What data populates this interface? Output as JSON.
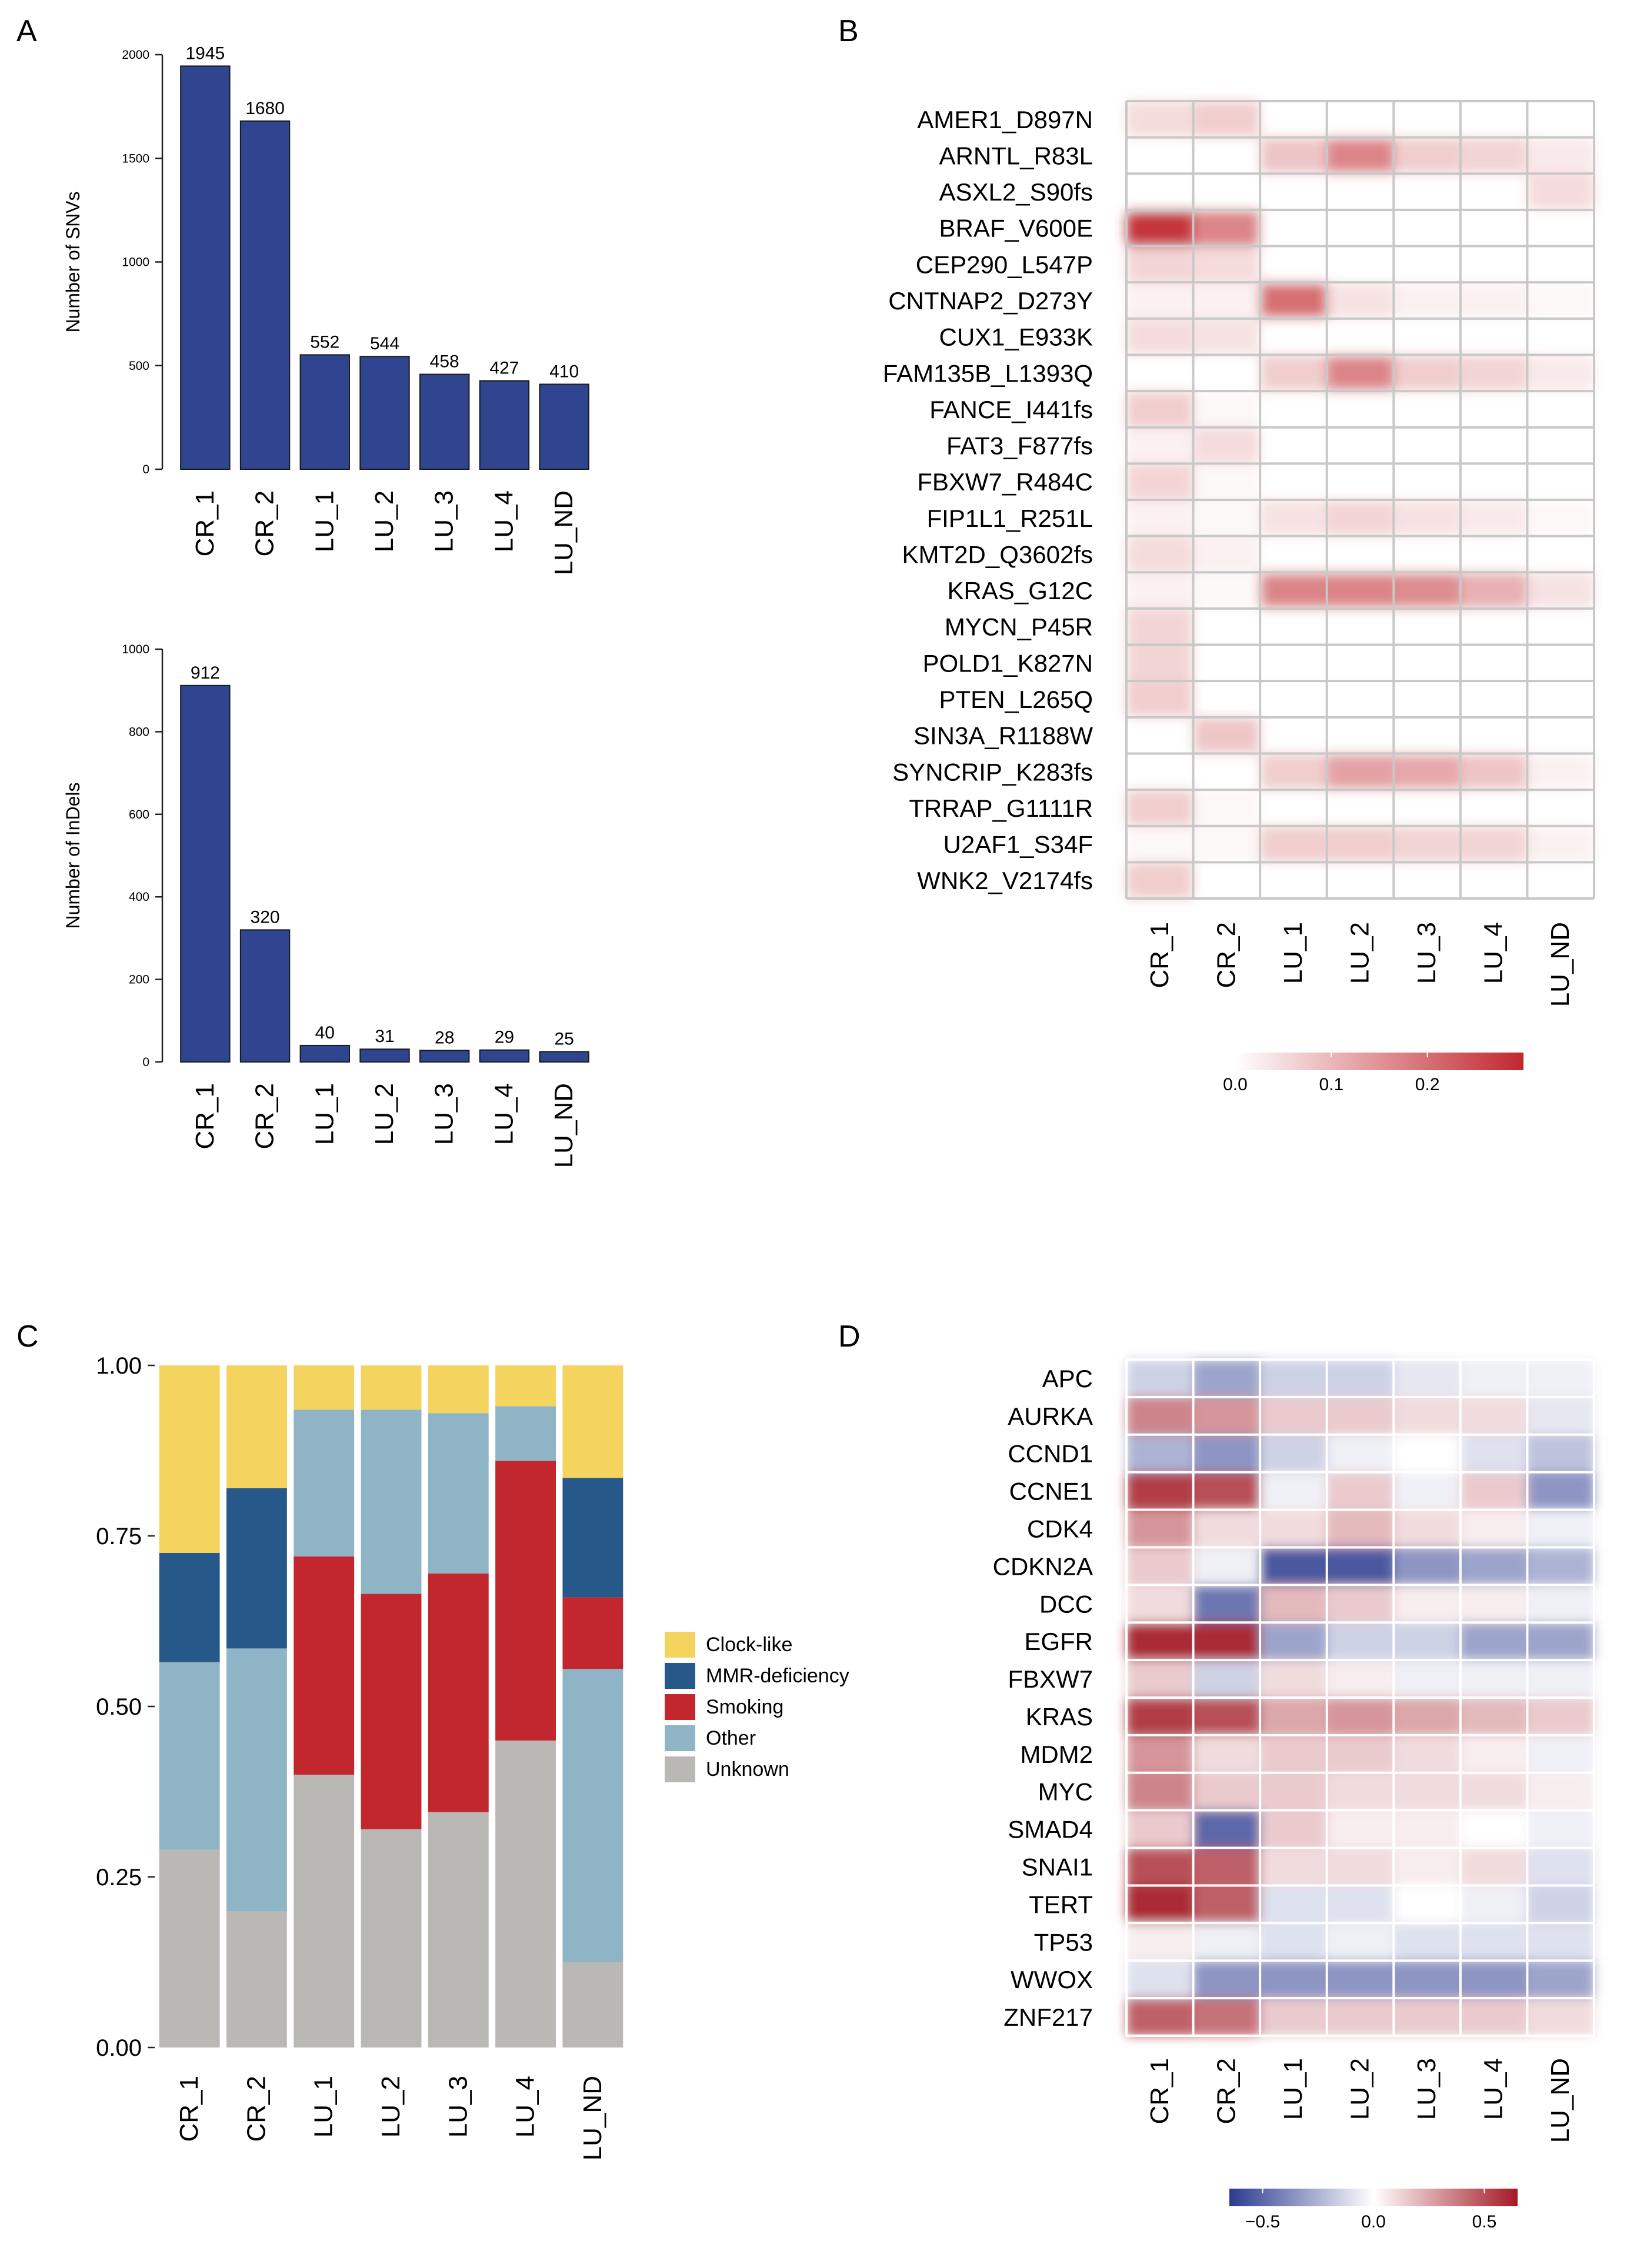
{
  "panel_labels": {
    "a": "A",
    "b": "B",
    "c": "C",
    "d": "D"
  },
  "chart_data": [
    {
      "panel": "A-top",
      "type": "bar",
      "title": "",
      "xlabel": "",
      "ylabel": "Number of SNVs",
      "categories": [
        "CR_1",
        "CR_2",
        "LU_1",
        "LU_2",
        "LU_3",
        "LU_4",
        "LU_ND"
      ],
      "values": [
        1945,
        1680,
        552,
        544,
        458,
        427,
        410
      ],
      "ylim": [
        0,
        2000
      ],
      "yticks": [
        0,
        500,
        1000,
        1500,
        2000
      ],
      "bar_color": "#2f4590",
      "data_labels": true
    },
    {
      "panel": "A-bottom",
      "type": "bar",
      "title": "",
      "xlabel": "",
      "ylabel": "Number of InDels",
      "categories": [
        "CR_1",
        "CR_2",
        "LU_1",
        "LU_2",
        "LU_3",
        "LU_4",
        "LU_ND"
      ],
      "values": [
        912,
        320,
        40,
        31,
        28,
        29,
        25
      ],
      "ylim": [
        0,
        1000
      ],
      "yticks": [
        0,
        200,
        400,
        600,
        800,
        1000
      ],
      "bar_color": "#2f4590",
      "data_labels": true
    },
    {
      "panel": "B",
      "type": "heatmap",
      "title": "",
      "columns": [
        "CR_1",
        "CR_2",
        "LU_1",
        "LU_2",
        "LU_3",
        "LU_4",
        "LU_ND"
      ],
      "rows": [
        "AMER1_D897N",
        "ARNTL_R83L",
        "ASXL2_S90fs",
        "BRAF_V600E",
        "CEP290_L547P",
        "CNTNAP2_D273Y",
        "CUX1_E933K",
        "FAM135B_L1393Q",
        "FANCE_I441fs",
        "FAT3_F877fs",
        "FBXW7_R484C",
        "FIP1L1_R251L",
        "KMT2D_Q3602fs",
        "KRAS_G12C",
        "MYCN_P45R",
        "POLD1_K827N",
        "PTEN_L265Q",
        "SIN3A_R1188W",
        "SYNCRIP_K283fs",
        "TRRAP_G1111R",
        "U2AF1_S34F",
        "WNK2_V2174fs"
      ],
      "values": [
        [
          0.05,
          0.07,
          0,
          0,
          0,
          0,
          0
        ],
        [
          0,
          0,
          0.08,
          0.17,
          0.07,
          0.06,
          0.03
        ],
        [
          0,
          0,
          0,
          0,
          0,
          0,
          0.05
        ],
        [
          0.28,
          0.17,
          0,
          0,
          0,
          0,
          0
        ],
        [
          0.06,
          0.05,
          0,
          0,
          0,
          0,
          0
        ],
        [
          0.02,
          0.02,
          0.2,
          0.04,
          0.02,
          0.02,
          0.01
        ],
        [
          0.05,
          0.04,
          0,
          0,
          0,
          0,
          0
        ],
        [
          0,
          0,
          0.07,
          0.17,
          0.07,
          0.06,
          0.03
        ],
        [
          0.07,
          0.01,
          0,
          0,
          0,
          0,
          0
        ],
        [
          0.02,
          0.05,
          0,
          0,
          0,
          0,
          0
        ],
        [
          0.06,
          0.01,
          0,
          0,
          0,
          0,
          0
        ],
        [
          0.02,
          0.01,
          0.04,
          0.06,
          0.04,
          0.03,
          0.01
        ],
        [
          0.05,
          0.02,
          0,
          0,
          0,
          0,
          0
        ],
        [
          0.02,
          0.01,
          0.17,
          0.17,
          0.16,
          0.11,
          0.04
        ],
        [
          0.06,
          0,
          0,
          0,
          0,
          0,
          0
        ],
        [
          0.06,
          0,
          0,
          0,
          0,
          0,
          0
        ],
        [
          0.07,
          0,
          0,
          0,
          0,
          0,
          0
        ],
        [
          0,
          0.08,
          0,
          0,
          0,
          0,
          0
        ],
        [
          0,
          0,
          0.07,
          0.13,
          0.12,
          0.08,
          0.02
        ],
        [
          0.07,
          0.01,
          0,
          0,
          0,
          0,
          0
        ],
        [
          0.01,
          0.01,
          0.07,
          0.07,
          0.06,
          0.06,
          0.02
        ],
        [
          0.07,
          0,
          0,
          0,
          0,
          0,
          0
        ]
      ],
      "colorbar": {
        "range": [
          0,
          0.3
        ],
        "ticks": [
          0,
          0.1,
          0.2
        ],
        "tick_labels": [
          "0.0",
          "0.1",
          "0.2"
        ],
        "low_color": "#ffffff",
        "high_color": "#c1272d"
      }
    },
    {
      "panel": "C",
      "type": "bar",
      "stacked": true,
      "title": "",
      "xlabel": "",
      "ylabel": "",
      "categories": [
        "CR_1",
        "CR_2",
        "LU_1",
        "LU_2",
        "LU_3",
        "LU_4",
        "LU_ND"
      ],
      "series": [
        {
          "name": "Unknown",
          "color": "#b9b8b5",
          "values": [
            0.29,
            0.2,
            0.4,
            0.32,
            0.345,
            0.45,
            0.125
          ]
        },
        {
          "name": "Other",
          "color": "#8fb4c6",
          "values": [
            0.275,
            0.385,
            0.0,
            0.0,
            0.0,
            0.0,
            0.43
          ]
        },
        {
          "name": "Smoking",
          "color": "#c1272d",
          "values": [
            0.0,
            0.0,
            0.32,
            0.345,
            0.35,
            0.41,
            0.105
          ]
        },
        {
          "name": "Other",
          "color": "#8fb4c6",
          "values": [
            0.0,
            0.0,
            0.215,
            0.27,
            0.235,
            0.08,
            0.0
          ]
        },
        {
          "name": "MMR-deficiency",
          "color": "#27588a",
          "values": [
            0.16,
            0.235,
            0.0,
            0.0,
            0.0,
            0.0,
            0.175
          ]
        },
        {
          "name": "Clock-like",
          "color": "#f4d35e",
          "values": [
            0.275,
            0.18,
            0.065,
            0.065,
            0.07,
            0.06,
            0.165
          ]
        }
      ],
      "legend": [
        "Clock-like",
        "MMR-deficiency",
        "Smoking",
        "Other",
        "Unknown"
      ],
      "legend_colors": [
        "#f4d35e",
        "#27588a",
        "#c1272d",
        "#8fb4c6",
        "#b9b8b5"
      ],
      "legend_position": "right",
      "ylim": [
        0,
        1
      ],
      "yticks": [
        "0.00",
        "0.25",
        "0.50",
        "0.75",
        "1.00"
      ]
    },
    {
      "panel": "D",
      "type": "heatmap",
      "title": "",
      "columns": [
        "CR_1",
        "CR_2",
        "LU_1",
        "LU_2",
        "LU_3",
        "LU_4",
        "LU_ND"
      ],
      "rows": [
        "APC",
        "AURKA",
        "CCND1",
        "CCNE1",
        "CDK4",
        "CDKN2A",
        "DCC",
        "EGFR",
        "FBXW7",
        "KRAS",
        "MDM2",
        "MYC",
        "SMAD4",
        "SNAI1",
        "TERT",
        "TP53",
        "WWOX",
        "ZNF217"
      ],
      "values": [
        [
          -0.15,
          -0.3,
          -0.15,
          -0.15,
          -0.08,
          -0.05,
          -0.05
        ],
        [
          0.35,
          0.3,
          0.15,
          0.15,
          0.1,
          0.1,
          -0.08
        ],
        [
          -0.25,
          -0.35,
          -0.15,
          -0.05,
          0.0,
          -0.1,
          -0.2
        ],
        [
          0.55,
          0.5,
          -0.05,
          0.15,
          -0.05,
          0.15,
          -0.35
        ],
        [
          0.3,
          0.1,
          0.1,
          0.2,
          0.1,
          0.05,
          -0.05
        ],
        [
          0.15,
          -0.05,
          -0.55,
          -0.55,
          -0.35,
          -0.3,
          -0.25
        ],
        [
          0.1,
          -0.45,
          0.2,
          0.15,
          0.05,
          0.05,
          -0.05
        ],
        [
          0.6,
          0.6,
          -0.3,
          -0.15,
          -0.15,
          -0.3,
          -0.3
        ],
        [
          0.15,
          -0.15,
          0.1,
          0.05,
          -0.05,
          -0.05,
          -0.05
        ],
        [
          0.55,
          0.5,
          0.25,
          0.3,
          0.25,
          0.2,
          0.15
        ],
        [
          0.3,
          0.1,
          0.15,
          0.15,
          0.1,
          0.05,
          -0.05
        ],
        [
          0.35,
          0.15,
          0.15,
          0.1,
          0.1,
          0.1,
          0.05
        ],
        [
          0.15,
          -0.5,
          0.15,
          0.05,
          0.05,
          0.0,
          -0.05
        ],
        [
          0.5,
          0.45,
          0.1,
          0.1,
          0.05,
          0.1,
          -0.1
        ],
        [
          0.6,
          0.45,
          -0.1,
          -0.1,
          0.0,
          -0.05,
          -0.15
        ],
        [
          0.05,
          -0.05,
          -0.1,
          -0.05,
          -0.1,
          -0.1,
          -0.1
        ],
        [
          -0.1,
          -0.35,
          -0.35,
          -0.35,
          -0.35,
          -0.35,
          -0.3
        ],
        [
          0.45,
          0.4,
          0.15,
          0.15,
          0.15,
          0.15,
          0.1
        ]
      ],
      "colorbar": {
        "range": [
          -0.65,
          0.65
        ],
        "ticks": [
          -0.5,
          0,
          0.5
        ],
        "tick_labels": [
          "−0.5",
          "0.0",
          "0.5"
        ],
        "low_color": "#2b3a8f",
        "mid_color": "#ffffff",
        "high_color": "#a31a25"
      }
    }
  ]
}
